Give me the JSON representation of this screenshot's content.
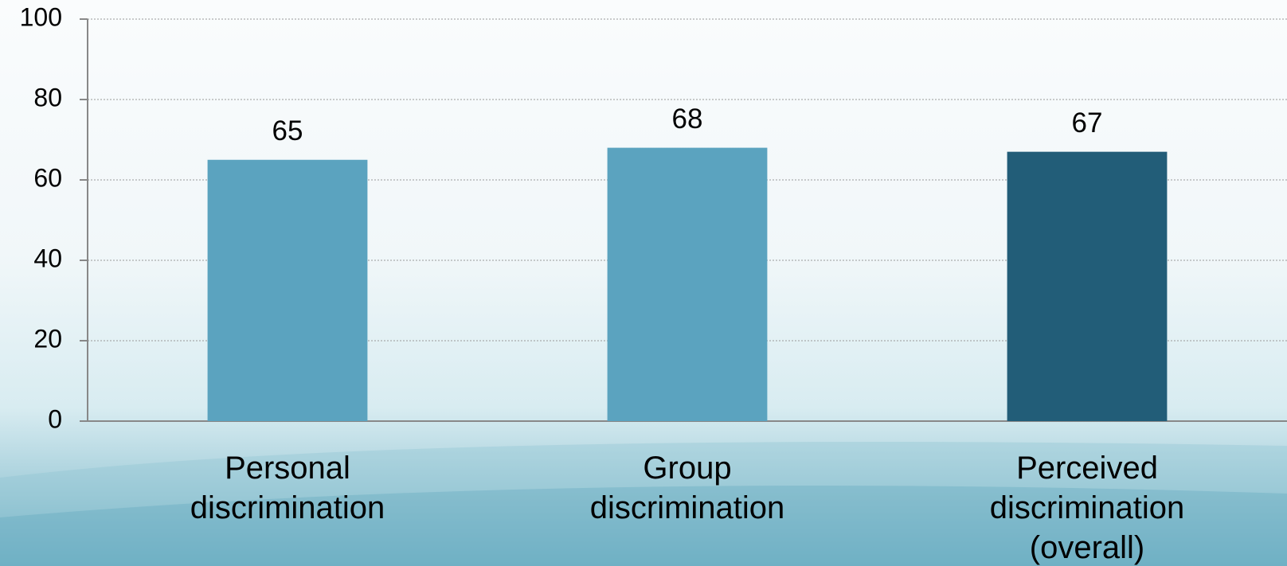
{
  "chart_data": {
    "type": "bar",
    "categories": [
      "Personal discrimination",
      "Group discrimination",
      "Perceived discrimination (overall)"
    ],
    "values": [
      65,
      68,
      67
    ],
    "colors": [
      "#5ba3bf",
      "#5ba3bf",
      "#225d78"
    ],
    "ylim": [
      0,
      100
    ],
    "yticks": [
      0,
      20,
      40,
      60,
      80,
      100
    ],
    "grid": true
  }
}
